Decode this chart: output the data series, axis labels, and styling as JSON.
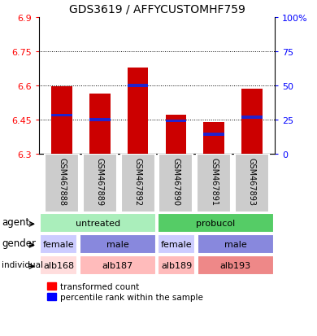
{
  "title": "GDS3619 / AFFYCUSTOMHF759",
  "samples": [
    "GSM467888",
    "GSM467889",
    "GSM467892",
    "GSM467890",
    "GSM467891",
    "GSM467893"
  ],
  "bar_bottoms": [
    6.3,
    6.3,
    6.3,
    6.3,
    6.3,
    6.3
  ],
  "bar_tops": [
    6.595,
    6.565,
    6.68,
    6.47,
    6.44,
    6.585
  ],
  "blue_positions": [
    6.47,
    6.45,
    6.6,
    6.445,
    6.385,
    6.46
  ],
  "ylim": [
    6.3,
    6.9
  ],
  "yticks_left": [
    6.3,
    6.45,
    6.6,
    6.75,
    6.9
  ],
  "ytick_labels_left": [
    "6.3",
    "6.45",
    "6.6",
    "6.75",
    "6.9"
  ],
  "ytick_labels_right": [
    "0",
    "25",
    "50",
    "75",
    "100%"
  ],
  "bar_color": "#cc0000",
  "blue_color": "#2222cc",
  "agent_groups": [
    {
      "cols": [
        0,
        1,
        2
      ],
      "color": "#aaeebb",
      "label": "untreated"
    },
    {
      "cols": [
        3,
        4,
        5
      ],
      "color": "#55cc66",
      "label": "probucol"
    }
  ],
  "gender_groups": [
    {
      "cols": [
        0
      ],
      "color": "#ccccff",
      "label": "female"
    },
    {
      "cols": [
        1,
        2
      ],
      "color": "#8888dd",
      "label": "male"
    },
    {
      "cols": [
        3
      ],
      "color": "#ccccff",
      "label": "female"
    },
    {
      "cols": [
        4,
        5
      ],
      "color": "#8888dd",
      "label": "male"
    }
  ],
  "individual_groups": [
    {
      "cols": [
        0
      ],
      "color": "#ffdddd",
      "label": "alb168"
    },
    {
      "cols": [
        1,
        2
      ],
      "color": "#ffbbbb",
      "label": "alb187"
    },
    {
      "cols": [
        3
      ],
      "color": "#ffbbbb",
      "label": "alb189"
    },
    {
      "cols": [
        4,
        5
      ],
      "color": "#ee8888",
      "label": "alb193"
    }
  ],
  "row_labels": [
    "agent",
    "gender",
    "individual"
  ],
  "background_color": "#ffffff"
}
